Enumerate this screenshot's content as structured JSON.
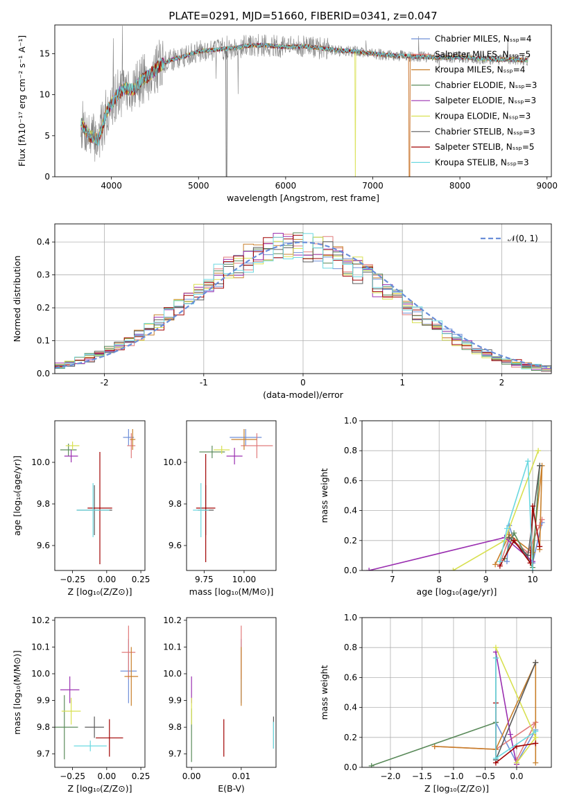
{
  "figure_title": "PLATE=0291, MJD=51660, FIBERID=0341, z=0.047",
  "colors": [
    "#6f8fd8",
    "#e07a7a",
    "#c87f2a",
    "#5a8a5a",
    "#9a2fb0",
    "#d8e050",
    "#5a5a5a",
    "#a00000",
    "#6ad8e0"
  ],
  "chart_data": [
    {
      "id": "spectrum",
      "type": "line",
      "title": "PLATE=0291, MJD=51660, FIBERID=0341, z=0.047",
      "xlabel": "wavelength [Angstrom, rest frame]",
      "ylabel": "Flux [fλ10⁻¹⁷ erg cm⁻² s⁻¹ A⁻¹]",
      "xlim": [
        3350,
        9050
      ],
      "ylim": [
        0,
        18.5
      ],
      "xticks": [
        4000,
        5000,
        6000,
        7000,
        8000,
        9000
      ],
      "yticks": [
        0,
        5,
        10,
        15
      ],
      "legend_position": "right",
      "legend": [
        {
          "name": "Chabrier MILES",
          "nssp": "Nₛₛₚ=4",
          "color": "#6f8fd8"
        },
        {
          "name": "Salpeter MILES",
          "nssp": "Nₛₛₚ=5",
          "color": "#e07a7a"
        },
        {
          "name": "Kroupa MILES",
          "nssp": "Nₛₛₚ=4",
          "color": "#c87f2a"
        },
        {
          "name": "Chabrier ELODIE",
          "nssp": "Nₛₛₚ=3",
          "color": "#5a8a5a"
        },
        {
          "name": "Salpeter ELODIE",
          "nssp": "Nₛₛₚ=3",
          "color": "#9a2fb0"
        },
        {
          "name": "Kroupa ELODIE",
          "nssp": "Nₛₛₚ=3",
          "color": "#d8e050"
        },
        {
          "name": "Chabrier STELIB",
          "nssp": "Nₛₛₚ=3",
          "color": "#5a5a5a"
        },
        {
          "name": "Salpeter STELIB",
          "nssp": "Nₛₛₚ=5",
          "color": "#a00000"
        },
        {
          "name": "Kroupa STELIB",
          "nssp": "Nₛₛₚ=3",
          "color": "#6ad8e0"
        }
      ],
      "observed_color": "#808080",
      "continuum": [
        [
          3650,
          6.5
        ],
        [
          3750,
          5.0
        ],
        [
          3850,
          4.5
        ],
        [
          3950,
          8.0
        ],
        [
          4050,
          9.8
        ],
        [
          4150,
          10.8
        ],
        [
          4250,
          10.6
        ],
        [
          4350,
          11.8
        ],
        [
          4450,
          12.5
        ],
        [
          4550,
          13.5
        ],
        [
          4700,
          14.3
        ],
        [
          4850,
          14.7
        ],
        [
          5000,
          15.3
        ],
        [
          5200,
          15.5
        ],
        [
          5400,
          15.7
        ],
        [
          5600,
          16.0
        ],
        [
          5800,
          16.0
        ],
        [
          6000,
          15.8
        ],
        [
          6200,
          15.9
        ],
        [
          6400,
          15.7
        ],
        [
          6600,
          15.4
        ],
        [
          6800,
          15.3
        ],
        [
          7000,
          15.0
        ],
        [
          7200,
          14.8
        ],
        [
          7400,
          14.7
        ],
        [
          7600,
          14.6
        ],
        [
          7800,
          14.5
        ],
        [
          8000,
          14.6
        ],
        [
          8200,
          14.4
        ],
        [
          8400,
          14.3
        ],
        [
          8600,
          14.3
        ],
        [
          8800,
          14.2
        ]
      ]
    },
    {
      "id": "residuals",
      "type": "histogram",
      "xlabel": "(data-model)/error",
      "ylabel": "Normed distribution",
      "xlim": [
        -2.5,
        2.5
      ],
      "ylim": [
        0,
        0.455
      ],
      "xticks": [
        -2,
        -1,
        0,
        1,
        2
      ],
      "yticks": [
        0.0,
        0.1,
        0.2,
        0.3,
        0.4
      ],
      "grid": true,
      "legend_position": "top-right",
      "legend": "𝒩(0, 1)",
      "reference_color": "#6a8ed8"
    },
    {
      "id": "age-vs-z",
      "type": "errorbar",
      "xlabel": "Z [log₁₀(Z/Z⊙)]",
      "ylabel": "age  [log₁₀(age/yr)]",
      "xlim": [
        -0.38,
        0.28
      ],
      "ylim": [
        9.48,
        10.2
      ],
      "xticks": [
        -0.25,
        0.0,
        0.25
      ],
      "xtick_labels": [
        "−0.25",
        "0.00",
        "0.25"
      ],
      "yticks": [
        9.6,
        9.8,
        10.0
      ],
      "ytick_labels": [
        "9.6",
        "9.8",
        "10.0"
      ],
      "points": [
        {
          "x": 0.16,
          "y": 10.12,
          "xerr": 0.04,
          "yerr": 0.04,
          "c": 0
        },
        {
          "x": 0.18,
          "y": 10.08,
          "xerr": 0.03,
          "yerr": 0.06,
          "c": 1
        },
        {
          "x": 0.19,
          "y": 10.11,
          "xerr": 0.02,
          "yerr": 0.05,
          "c": 2
        },
        {
          "x": -0.28,
          "y": 10.06,
          "xerr": 0.06,
          "yerr": 0.03,
          "c": 3
        },
        {
          "x": -0.26,
          "y": 10.03,
          "xerr": 0.05,
          "yerr": 0.03,
          "c": 4
        },
        {
          "x": -0.25,
          "y": 10.08,
          "xerr": 0.05,
          "yerr": 0.02,
          "c": 5
        },
        {
          "x": -0.09,
          "y": 9.77,
          "xerr": 0.13,
          "yerr": 0.12,
          "c": 6
        },
        {
          "x": -0.05,
          "y": 9.78,
          "xerr": 0.09,
          "yerr": 0.27,
          "c": 7
        },
        {
          "x": -0.1,
          "y": 9.77,
          "xerr": 0.12,
          "yerr": 0.13,
          "c": 8
        }
      ]
    },
    {
      "id": "age-vs-mass",
      "type": "errorbar",
      "xlabel": "mass [log₁₀(M/M⊙)]",
      "xlim": [
        9.64,
        10.2
      ],
      "ylim": [
        9.48,
        10.2
      ],
      "xticks": [
        9.75,
        10.0
      ],
      "xtick_labels": [
        "9.75",
        "10.00"
      ],
      "yticks": [
        9.6,
        9.8,
        10.0
      ],
      "ytick_labels": [
        "9.6",
        "9.8",
        "10.0"
      ],
      "points": [
        {
          "x": 10.01,
          "y": 10.12,
          "xerr": 0.1,
          "yerr": 0.04,
          "c": 0
        },
        {
          "x": 10.08,
          "y": 10.08,
          "xerr": 0.1,
          "yerr": 0.06,
          "c": 1
        },
        {
          "x": 10.0,
          "y": 10.11,
          "xerr": 0.08,
          "yerr": 0.05,
          "c": 2
        },
        {
          "x": 9.8,
          "y": 10.05,
          "xerr": 0.08,
          "yerr": 0.03,
          "c": 3
        },
        {
          "x": 9.94,
          "y": 10.03,
          "xerr": 0.05,
          "yerr": 0.04,
          "c": 4
        },
        {
          "x": 9.86,
          "y": 10.06,
          "xerr": 0.05,
          "yerr": 0.02,
          "c": 5
        },
        {
          "x": 9.76,
          "y": 9.77,
          "xerr": 0.05,
          "yerr": 0.12,
          "c": 6
        },
        {
          "x": 9.76,
          "y": 9.78,
          "xerr": 0.06,
          "yerr": 0.26,
          "c": 7
        },
        {
          "x": 9.73,
          "y": 9.77,
          "xerr": 0.05,
          "yerr": 0.13,
          "c": 8
        }
      ]
    },
    {
      "id": "weight-vs-age",
      "type": "line",
      "xlabel": "age  [log₁₀(age/yr)]",
      "ylabel": "mass weight",
      "xlim": [
        6.35,
        10.4
      ],
      "ylim": [
        0,
        1
      ],
      "xticks": [
        7,
        8,
        9,
        10
      ],
      "yticks": [
        0.0,
        0.2,
        0.4,
        0.6,
        0.8,
        1.0
      ],
      "grid": true,
      "series": [
        {
          "c": 0,
          "x": [
            9.45,
            9.5,
            9.6,
            10.0,
            10.2
          ],
          "y": [
            0.06,
            0.3,
            0.2,
            0.05,
            0.32
          ]
        },
        {
          "c": 1,
          "x": [
            9.3,
            9.5,
            9.9,
            10.15,
            10.2
          ],
          "y": [
            0.04,
            0.22,
            0.12,
            0.3,
            0.34
          ]
        },
        {
          "c": 2,
          "x": [
            9.2,
            9.5,
            10.0,
            10.2,
            10.15
          ],
          "y": [
            0.04,
            0.24,
            0.12,
            0.7,
            0.14
          ]
        },
        {
          "c": 3,
          "x": [
            9.4,
            9.6,
            10.0,
            10.15
          ],
          "y": [
            0.08,
            0.25,
            0.02,
            0.7
          ]
        },
        {
          "c": 4,
          "x": [
            6.5,
            9.4,
            10.0
          ],
          "y": [
            0.0,
            0.22,
            0.06
          ]
        },
        {
          "c": 5,
          "x": [
            8.3,
            9.4,
            10.12
          ],
          "y": [
            0.0,
            0.2,
            0.8
          ]
        },
        {
          "c": 6,
          "x": [
            9.5,
            9.9,
            10.15
          ],
          "y": [
            0.22,
            0.1,
            0.7
          ]
        },
        {
          "c": 7,
          "x": [
            9.3,
            9.6,
            9.95,
            10.0,
            10.15
          ],
          "y": [
            0.03,
            0.2,
            0.05,
            0.43,
            0.16
          ]
        },
        {
          "c": 8,
          "x": [
            9.3,
            9.45,
            9.9,
            10.0
          ],
          "y": [
            0.06,
            0.28,
            0.73,
            0.0
          ]
        }
      ]
    },
    {
      "id": "mass-vs-z",
      "type": "errorbar",
      "xlabel": "Z [log₁₀(Z/Z⊙)]",
      "ylabel": "mass [log₁₀(M/M⊙)]",
      "xlim": [
        -0.38,
        0.28
      ],
      "ylim": [
        9.65,
        10.21
      ],
      "xticks": [
        -0.25,
        0.0,
        0.25
      ],
      "xtick_labels": [
        "−0.25",
        "0.00",
        "0.25"
      ],
      "yticks": [
        9.7,
        9.8,
        9.9,
        10.0,
        10.1,
        10.2
      ],
      "ytick_labels": [
        "9.7",
        "9.8",
        "9.9",
        "10.0",
        "10.1",
        "10.2"
      ],
      "points": [
        {
          "x": 0.16,
          "y": 10.01,
          "xerr": 0.06,
          "yerr": 0.12,
          "c": 0
        },
        {
          "x": 0.16,
          "y": 10.08,
          "xerr": 0.05,
          "yerr": 0.1,
          "c": 1
        },
        {
          "x": 0.18,
          "y": 9.99,
          "xerr": 0.05,
          "yerr": 0.11,
          "c": 2
        },
        {
          "x": -0.31,
          "y": 9.8,
          "xerr": 0.1,
          "yerr": 0.12,
          "c": 3
        },
        {
          "x": -0.27,
          "y": 9.94,
          "xerr": 0.07,
          "yerr": 0.05,
          "c": 4
        },
        {
          "x": -0.26,
          "y": 9.86,
          "xerr": 0.07,
          "yerr": 0.05,
          "c": 5
        },
        {
          "x": -0.09,
          "y": 9.8,
          "xerr": 0.07,
          "yerr": 0.04,
          "c": 6
        },
        {
          "x": 0.02,
          "y": 9.76,
          "xerr": 0.1,
          "yerr": 0.07,
          "c": 7
        },
        {
          "x": -0.12,
          "y": 9.73,
          "xerr": 0.12,
          "yerr": 0.02,
          "c": 8
        }
      ]
    },
    {
      "id": "mass-vs-ebv",
      "type": "errorbar",
      "xlabel": "E(B-V)",
      "xlim": [
        -0.001,
        0.017
      ],
      "ylim": [
        9.65,
        10.21
      ],
      "xticks": [
        0.0,
        0.01
      ],
      "xtick_labels": [
        "0.00",
        "0.01"
      ],
      "yticks": [
        9.7,
        9.8,
        9.9,
        10.0,
        10.1,
        10.2
      ],
      "ytick_labels": [
        "9.7",
        "9.8",
        "9.9",
        "10.0",
        "10.1",
        "10.2"
      ],
      "points": [
        {
          "x": 0.01,
          "y": 10.01,
          "xerr": 0,
          "yerr": 0.12,
          "c": 0
        },
        {
          "x": 0.01,
          "y": 10.08,
          "xerr": 0,
          "yerr": 0.1,
          "c": 1
        },
        {
          "x": 0.01,
          "y": 9.99,
          "xerr": 0,
          "yerr": 0.11,
          "c": 2
        },
        {
          "x": 0.0,
          "y": 9.77,
          "xerr": 0,
          "yerr": 0.1,
          "c": 3
        },
        {
          "x": 0.0,
          "y": 9.94,
          "xerr": 0,
          "yerr": 0.05,
          "c": 4
        },
        {
          "x": 0.0,
          "y": 9.86,
          "xerr": 0,
          "yerr": 0.05,
          "c": 5
        },
        {
          "x": 0.0165,
          "y": 9.78,
          "xerr": 0,
          "yerr": 0.06,
          "c": 6
        },
        {
          "x": 0.0065,
          "y": 9.76,
          "xerr": 0,
          "yerr": 0.07,
          "c": 7
        },
        {
          "x": 0.0165,
          "y": 9.77,
          "xerr": 0,
          "yerr": 0.05,
          "c": 8
        }
      ]
    },
    {
      "id": "weight-vs-z",
      "type": "line",
      "xlabel": "Z [log₁₀(Z/Z⊙)]",
      "ylabel": "mass weight",
      "xlim": [
        -2.45,
        0.55
      ],
      "ylim": [
        0,
        1
      ],
      "xticks": [
        -2.0,
        -1.5,
        -1.0,
        -0.5,
        0.0
      ],
      "xtick_labels": [
        "−2.0",
        "−1.5",
        "−1.0",
        "−0.5",
        "0.0"
      ],
      "yticks": [
        0.0,
        0.2,
        0.4,
        0.6,
        0.8,
        1.0
      ],
      "grid": true,
      "series": [
        {
          "c": 0,
          "x": [
            -0.33,
            -0.33,
            0.0,
            0.3
          ],
          "y": [
            0.05,
            0.3,
            0.03,
            0.25
          ]
        },
        {
          "c": 1,
          "x": [
            -1.3,
            -0.33,
            0.3,
            0.0
          ],
          "y": [
            0.14,
            0.12,
            0.3,
            0.05
          ]
        },
        {
          "c": 2,
          "x": [
            -1.3,
            -0.33,
            0.3,
            0.3
          ],
          "y": [
            0.14,
            0.12,
            0.7,
            0.03
          ]
        },
        {
          "c": 3,
          "x": [
            -2.3,
            -0.33
          ],
          "y": [
            0.01,
            0.3
          ]
        },
        {
          "c": 4,
          "x": [
            -0.33,
            -0.1,
            0.0
          ],
          "y": [
            0.77,
            0.22,
            0.02
          ]
        },
        {
          "c": 5,
          "x": [
            -0.33,
            0.3,
            0.0
          ],
          "y": [
            0.8,
            0.2,
            0.03
          ]
        },
        {
          "c": 6,
          "x": [
            -0.33,
            -0.33,
            0.3
          ],
          "y": [
            0.73,
            0.05,
            0.7
          ]
        },
        {
          "c": 7,
          "x": [
            -0.33,
            -0.33,
            0.0,
            0.3
          ],
          "y": [
            0.43,
            0.03,
            0.14,
            0.16
          ]
        },
        {
          "c": 8,
          "x": [
            -0.33,
            -0.33,
            0.3
          ],
          "y": [
            0.73,
            0.06,
            0.24
          ]
        }
      ]
    }
  ]
}
